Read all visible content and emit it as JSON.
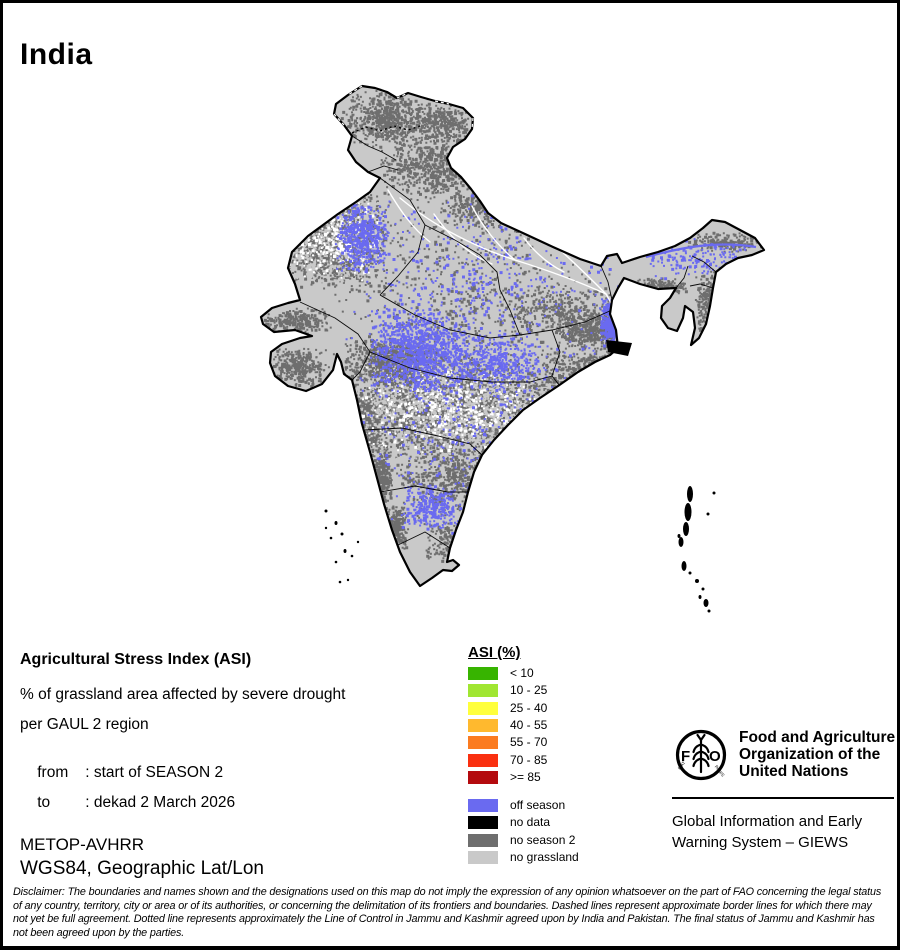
{
  "title": "India",
  "info": {
    "heading": "Agricultural Stress Index (ASI)",
    "line1": "% of grassland area affected by severe drought",
    "line2": "per GAUL 2 region",
    "from_label": "from",
    "from_value": ": start of SEASON 2",
    "to_label": "to",
    "to_value": ": dekad 2 March 2026"
  },
  "legend": {
    "heading": "ASI (%)",
    "classes": [
      {
        "label": "< 10",
        "color": "#37b400"
      },
      {
        "label": "10 - 25",
        "color": "#a0e632"
      },
      {
        "label": "25 - 40",
        "color": "#ffff3c"
      },
      {
        "label": "40 - 55",
        "color": "#ffb92e"
      },
      {
        "label": "55 - 70",
        "color": "#fb7b20"
      },
      {
        "label": "70 - 85",
        "color": "#fa3010"
      },
      {
        "label": ">= 85",
        "color": "#b40a0e"
      }
    ],
    "extra_classes": [
      {
        "label": "off season",
        "color": "#6a6af0"
      },
      {
        "label": "no data",
        "color": "#000000"
      },
      {
        "label": "no season 2",
        "color": "#6e6e6e"
      },
      {
        "label": "no grassland",
        "color": "#c9c9c9"
      }
    ]
  },
  "source": {
    "sensor": "METOP-AVHRR",
    "projection": "WGS84, Geographic Lat/Lon"
  },
  "fao": {
    "org_line1": "Food and Agriculture",
    "org_line2": "Organization of the",
    "org_line3": "United Nations",
    "giews_line1": "Global Information and Early",
    "giews_line2": "Warning System – GIEWS",
    "logo_letter_left": "F",
    "logo_letter_right": "O",
    "logo_motto_left": "FIAT",
    "logo_motto_right": "PANIS"
  },
  "disclaimer": "Disclaimer: The boundaries and names shown and the designations used on this map do not imply the expression of any opinion whatsoever on the part of FAO concerning the legal status of any country, territory, city or area or of its authorities, or concerning the delimitation of its frontiers and boundaries. Dashed lines represent approximate border lines for which there may not yet be full agreement. Dotted line represents approximately the Line of Control in Jammu and Kashmir agreed upon by India and Pakistan. The final status of Jammu and Kashmir has not been agreed upon by the parties.",
  "map": {
    "region": "India",
    "colors": {
      "land": "#c9c9c9",
      "no_season_2": "#6e6e6e",
      "off_season": "#6a6af0",
      "no_data": "#000000",
      "river": "#ffffff",
      "boundary": "#000000"
    }
  }
}
